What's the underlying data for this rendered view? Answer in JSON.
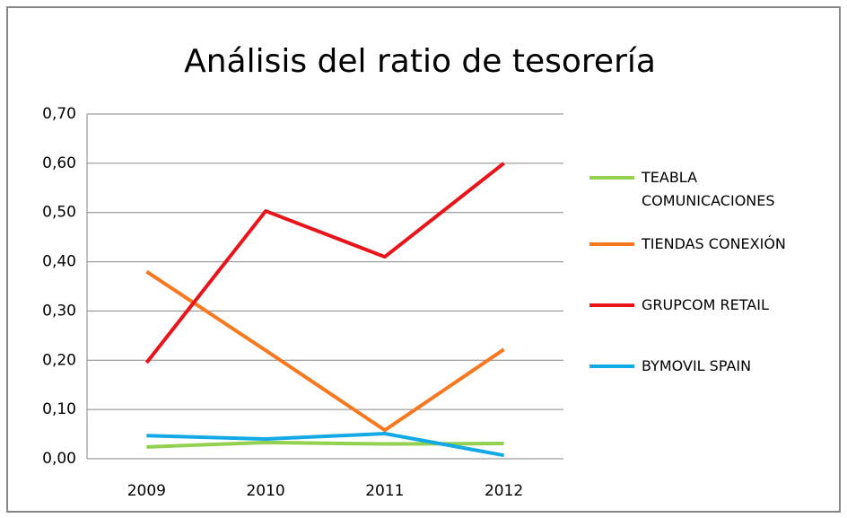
{
  "chart_data": {
    "type": "line",
    "title": "Análisis del ratio de tesorería",
    "categories": [
      "2009",
      "2010",
      "2011",
      "2012"
    ],
    "series": [
      {
        "name": "TEABLA COMUNICACIONES",
        "color": "#92d050",
        "values": [
          0.024,
          0.033,
          0.03,
          0.031
        ]
      },
      {
        "name": "TIENDAS CONEXIÓN",
        "color": "#f7781e",
        "values": [
          0.38,
          0.22,
          0.058,
          0.222
        ]
      },
      {
        "name": "GRUPCOM RETAIL",
        "color": "#e8141a",
        "values": [
          0.195,
          0.503,
          0.41,
          0.6
        ]
      },
      {
        "name": "BYMOVIL SPAIN",
        "color": "#13a8e6",
        "values": [
          0.047,
          0.04,
          0.051,
          0.007
        ]
      }
    ],
    "ylim": [
      0,
      0.7
    ],
    "yticks": [
      {
        "value": 0,
        "label": "0,00"
      },
      {
        "value": 0.1,
        "label": "0,10"
      },
      {
        "value": 0.2,
        "label": "0,20"
      },
      {
        "value": 0.3,
        "label": "0,30"
      },
      {
        "value": 0.4,
        "label": "0,40"
      },
      {
        "value": 0.5,
        "label": "0,50"
      },
      {
        "value": 0.6,
        "label": "0,60"
      },
      {
        "value": 0.7,
        "label": "0,70"
      }
    ],
    "grid": true,
    "legend": "right"
  }
}
